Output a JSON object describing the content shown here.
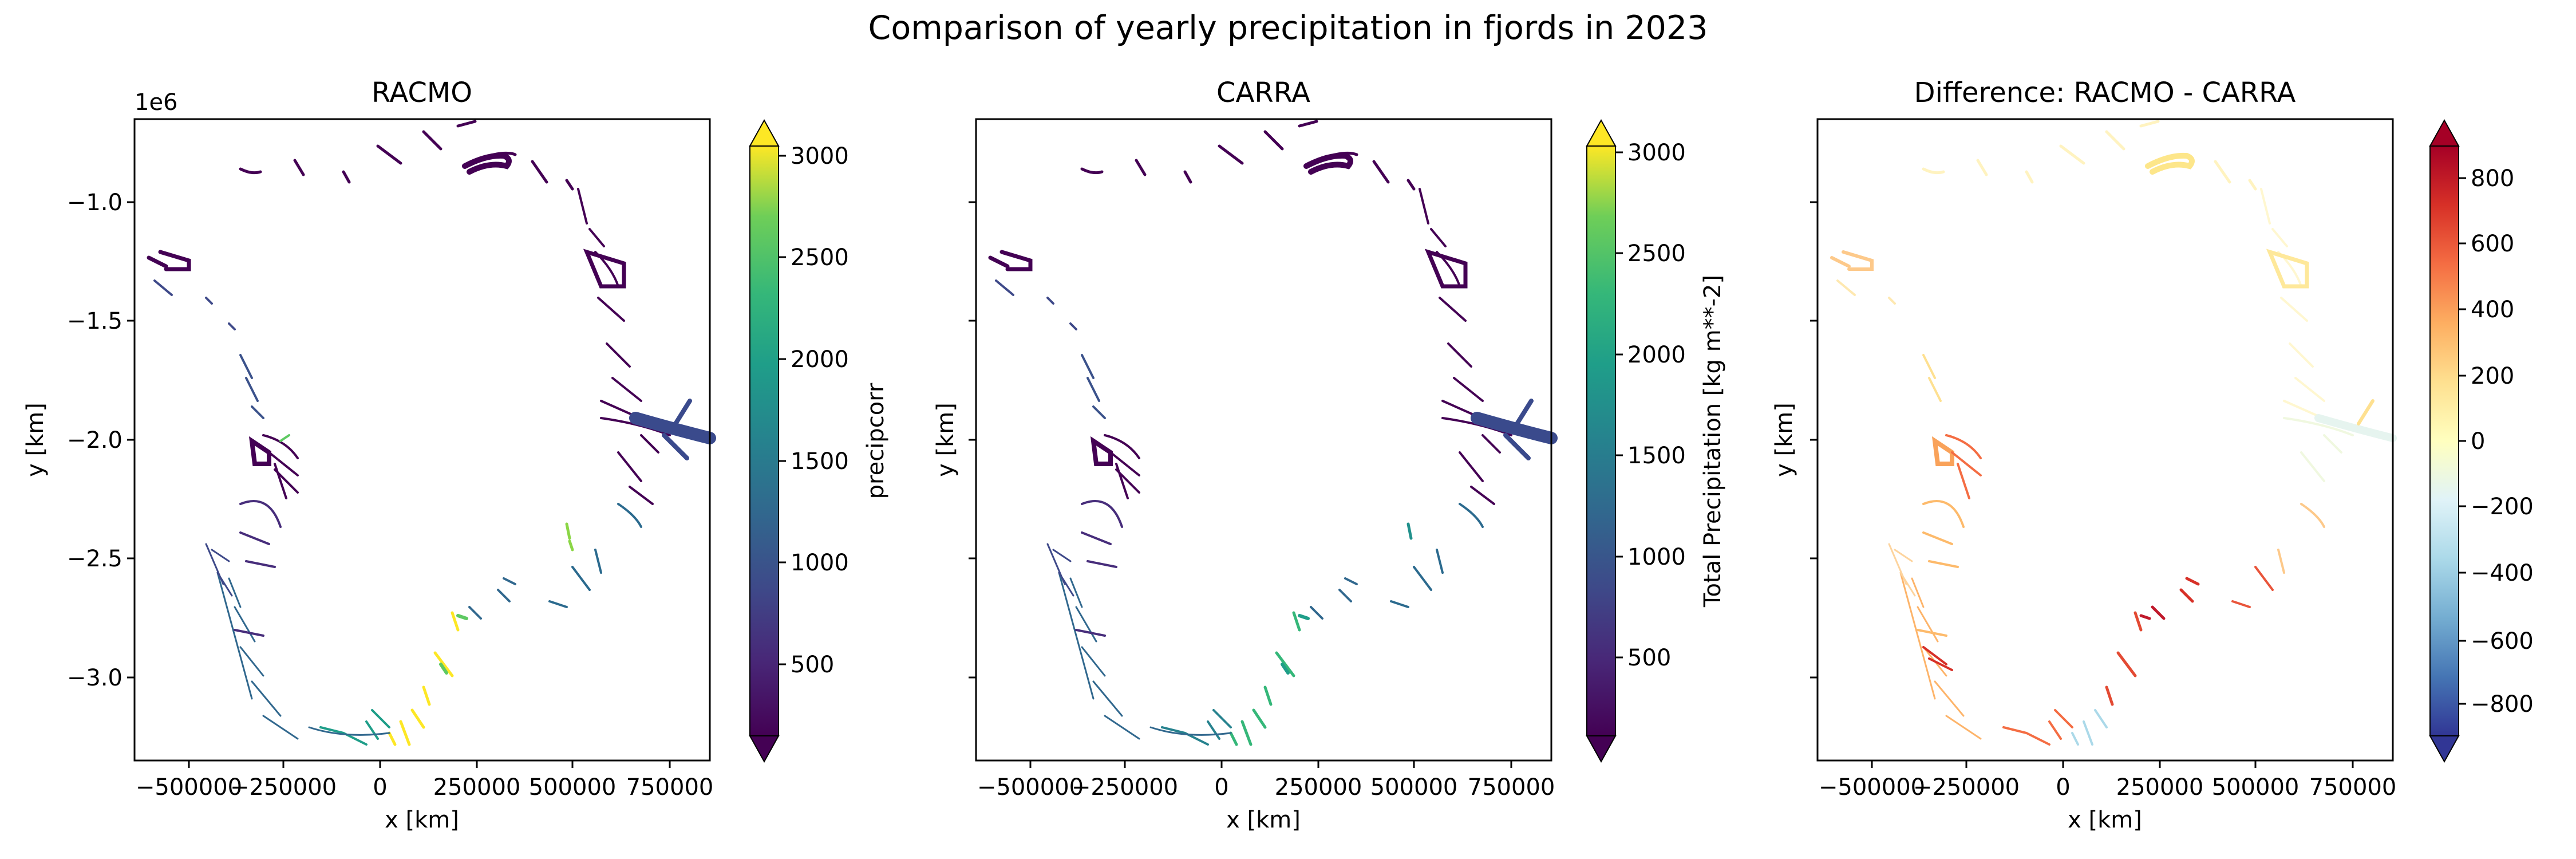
{
  "figure": {
    "suptitle": "Comparison of yearly precipitation in fjords in 2023"
  },
  "chart_data": [
    {
      "type": "heatmap",
      "title": "RACMO",
      "xlabel": "x [km]",
      "ylabel": "y [km]",
      "y_offset_text": "1e6",
      "xticks": [
        -500000,
        -250000,
        0,
        250000,
        500000,
        750000
      ],
      "xtick_labels": [
        "−500000",
        "−250000",
        "0",
        "250000",
        "500000",
        "750000"
      ],
      "yticks": [
        -1.0,
        -1.5,
        -2.0,
        -2.5,
        -3.0
      ],
      "ytick_labels": [
        "−1.0",
        "−1.5",
        "−2.0",
        "−2.5",
        "−3.0"
      ],
      "xlim": [
        -640000,
        850000
      ],
      "ylim": [
        -3340000,
        -660000
      ],
      "colorbar": {
        "label": "precipcorr",
        "cmap": "viridis",
        "extend": "both",
        "range": [
          150,
          3050
        ],
        "ticks": [
          500,
          1000,
          1500,
          2000,
          2500,
          3000
        ],
        "tick_labels": [
          "500",
          "1000",
          "1500",
          "2000",
          "2500",
          "3000"
        ]
      }
    },
    {
      "type": "heatmap",
      "title": "CARRA",
      "xlabel": "x [km]",
      "ylabel": "y [km]",
      "xticks": [
        -500000,
        -250000,
        0,
        250000,
        500000,
        750000
      ],
      "xtick_labels": [
        "−500000",
        "−250000",
        "0",
        "250000",
        "500000",
        "750000"
      ],
      "xlim": [
        -640000,
        850000
      ],
      "ylim": [
        -3340000,
        -660000
      ],
      "colorbar": {
        "label": "Total Precipitation [kg m**-2]",
        "cmap": "viridis",
        "extend": "both",
        "range": [
          150,
          3050
        ],
        "ticks": [
          500,
          1000,
          1500,
          2000,
          2500,
          3000
        ],
        "tick_labels": [
          "500",
          "1000",
          "1500",
          "2000",
          "2500",
          "3000"
        ]
      }
    },
    {
      "type": "heatmap",
      "title": "Difference: RACMO - CARRA",
      "xlabel": "x [km]",
      "ylabel": "y [km]",
      "xticks": [
        -500000,
        -250000,
        0,
        250000,
        500000,
        750000
      ],
      "xtick_labels": [
        "−500000",
        "−250000",
        "0",
        "250000",
        "500000",
        "750000"
      ],
      "xlim": [
        -640000,
        850000
      ],
      "ylim": [
        -3340000,
        -660000
      ],
      "colorbar": {
        "label": "",
        "cmap": "RdYlBu_r",
        "extend": "both",
        "range": [
          -940,
          940
        ],
        "ticks": [
          -800,
          -600,
          -400,
          -200,
          0,
          200,
          400,
          600,
          800
        ],
        "tick_labels": [
          "−800",
          "−600",
          "−400",
          "−200",
          "0",
          "200",
          "400",
          "600",
          "800"
        ]
      }
    }
  ]
}
